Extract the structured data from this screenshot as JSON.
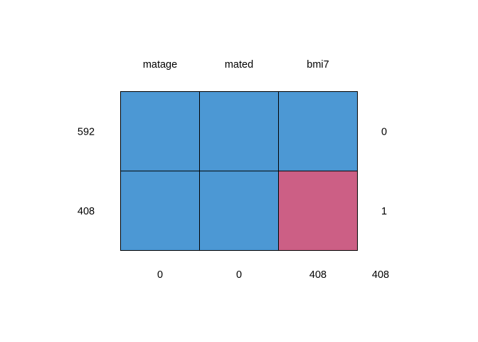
{
  "chart_data": {
    "type": "heatmap",
    "title": "",
    "columns": [
      "matage",
      "mated",
      "bmi7"
    ],
    "rows": [
      {
        "count": 592,
        "pattern": [
          1,
          1,
          1
        ],
        "missing_vars": 0
      },
      {
        "count": 408,
        "pattern": [
          1,
          1,
          0
        ],
        "missing_vars": 1
      }
    ],
    "column_missing_totals": [
      0,
      0,
      408
    ],
    "total_missing": 408,
    "colors": {
      "observed": "#4C98D4",
      "missing": "#CC5F85",
      "border": "#000000"
    }
  }
}
